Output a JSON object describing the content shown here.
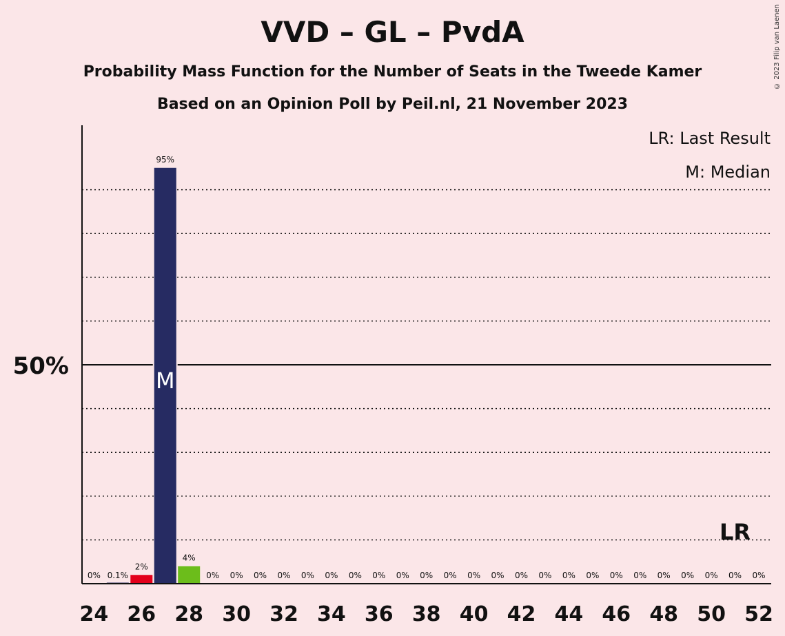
{
  "credit": "© 2023 Filip van Laenen",
  "chart_data": {
    "type": "bar",
    "title": "VVD – GL – PvdA",
    "subtitle": "Probability Mass Function for the Number of Seats in the Tweede Kamer",
    "subtitle2": "Based on an Opinion Poll by Peil.nl, 21 November 2023",
    "legend": [
      "LR: Last Result",
      "M: Median"
    ],
    "legend_position": "top-right",
    "x": [
      24,
      25,
      26,
      27,
      28,
      29,
      30,
      31,
      32,
      33,
      34,
      35,
      36,
      37,
      38,
      39,
      40,
      41,
      42,
      43,
      44,
      45,
      46,
      47,
      48,
      49,
      50,
      51,
      52
    ],
    "values": [
      0,
      0.1,
      2,
      95,
      4,
      0,
      0,
      0,
      0,
      0,
      0,
      0,
      0,
      0,
      0,
      0,
      0,
      0,
      0,
      0,
      0,
      0,
      0,
      0,
      0,
      0,
      0,
      0,
      0
    ],
    "data_labels": [
      "0%",
      "0.1%",
      "2%",
      "95%",
      "4%",
      "0%",
      "0%",
      "0%",
      "0%",
      "0%",
      "0%",
      "0%",
      "0%",
      "0%",
      "0%",
      "0%",
      "0%",
      "0%",
      "0%",
      "0%",
      "0%",
      "0%",
      "0%",
      "0%",
      "0%",
      "0%",
      "0%",
      "0%",
      "0%"
    ],
    "bar_colors": {
      "26": "#e3001b",
      "27": "#262b62",
      "28": "#6cbd1b"
    },
    "x_ticks": [
      "24",
      "26",
      "28",
      "30",
      "32",
      "34",
      "36",
      "38",
      "40",
      "42",
      "44",
      "46",
      "48",
      "50",
      "52"
    ],
    "y_tick_label": "50%",
    "y_tick_value": 50,
    "ylim": [
      0,
      100
    ],
    "grid": true,
    "median_seat": 27,
    "median_marker": "M",
    "last_result_seat": 51,
    "last_result_marker": "LR"
  }
}
